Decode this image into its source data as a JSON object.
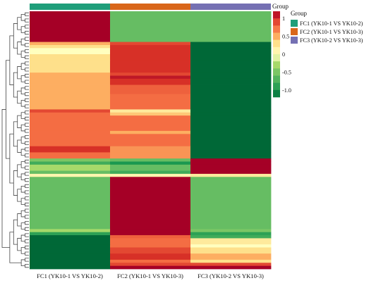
{
  "chart_data": {
    "type": "heatmap",
    "columns": [
      "FC1 (YK10-1 VS YK10-2)",
      "FC2 (YK10-1 VS YK10-3)",
      "FC3 (YK10-2 VS YK10-3)"
    ],
    "column_group_colors": [
      "#1f9e7a",
      "#d9661a",
      "#7570b3"
    ],
    "group_annotation": {
      "label": "Group",
      "legend_title": "Group",
      "entries": [
        {
          "name": "FC1 (YK10-1 VS YK10-2)",
          "color": "#1f9e7a"
        },
        {
          "name": "FC2 (YK10-1 VS YK10-3)",
          "color": "#d9661a"
        },
        {
          "name": "FC3 (YK10-2 VS YK10-3)",
          "color": "#7570b3"
        }
      ]
    },
    "color_scale": {
      "range": [
        -1.2,
        1.2
      ],
      "ticks": [
        1,
        0.5,
        0,
        -0.5,
        -1.0
      ],
      "tick_labels": [
        "1",
        "0.5",
        "0",
        "-0.5",
        "-1.0"
      ],
      "stops": [
        {
          "v": -1.2,
          "c": "#006837"
        },
        {
          "v": -1.0,
          "c": "#1a9850"
        },
        {
          "v": -0.6,
          "c": "#66bd63"
        },
        {
          "v": -0.3,
          "c": "#a6d96a"
        },
        {
          "v": 0.0,
          "c": "#ffffbf"
        },
        {
          "v": 0.3,
          "c": "#fee08b"
        },
        {
          "v": 0.5,
          "c": "#fdae61"
        },
        {
          "v": 0.75,
          "c": "#f46d43"
        },
        {
          "v": 1.0,
          "c": "#d73027"
        },
        {
          "v": 1.2,
          "c": "#a50026"
        }
      ]
    },
    "row_blocks": [
      {
        "rows": 10,
        "values": [
          1.2,
          -0.6,
          -0.6
        ]
      },
      {
        "rows": 1,
        "values": [
          0.5,
          0.9,
          -1.2
        ]
      },
      {
        "rows": 1,
        "values": [
          0.3,
          1.0,
          -1.2
        ]
      },
      {
        "rows": 2,
        "values": [
          0.0,
          1.0,
          -1.2
        ]
      },
      {
        "rows": 2,
        "values": [
          0.3,
          1.0,
          -1.2
        ]
      },
      {
        "rows": 4,
        "values": [
          0.3,
          1.0,
          -1.2
        ]
      },
      {
        "rows": 1,
        "values": [
          0.5,
          0.9,
          -1.2
        ]
      },
      {
        "rows": 1,
        "values": [
          0.5,
          1.1,
          -1.2
        ]
      },
      {
        "rows": 2,
        "values": [
          0.5,
          1.0,
          -1.2
        ]
      },
      {
        "rows": 3,
        "values": [
          0.5,
          0.8,
          -1.2
        ]
      },
      {
        "rows": 5,
        "values": [
          0.5,
          0.75,
          -1.2
        ]
      },
      {
        "rows": 1,
        "values": [
          0.9,
          0.2,
          -1.2
        ]
      },
      {
        "rows": 1,
        "values": [
          0.75,
          0.4,
          -1.2
        ]
      },
      {
        "rows": 5,
        "values": [
          0.75,
          0.75,
          -1.2
        ]
      },
      {
        "rows": 1,
        "values": [
          0.75,
          0.5,
          -1.2
        ]
      },
      {
        "rows": 4,
        "values": [
          0.75,
          0.75,
          -1.2
        ]
      },
      {
        "rows": 2,
        "values": [
          1.0,
          0.6,
          -1.2
        ]
      },
      {
        "rows": 2,
        "values": [
          0.75,
          0.6,
          -1.2
        ]
      },
      {
        "rows": 1,
        "values": [
          -0.5,
          -0.6,
          1.2
        ]
      },
      {
        "rows": 1,
        "values": [
          -0.8,
          -1.0,
          1.2
        ]
      },
      {
        "rows": 2,
        "values": [
          -0.3,
          -0.6,
          1.2
        ]
      },
      {
        "rows": 1,
        "values": [
          -0.6,
          -0.8,
          1.2
        ]
      },
      {
        "rows": 1,
        "values": [
          0.1,
          0.1,
          0.2
        ]
      },
      {
        "rows": 17,
        "values": [
          -0.6,
          1.2,
          -0.6
        ]
      },
      {
        "rows": 1,
        "values": [
          -0.3,
          1.2,
          -0.5
        ]
      },
      {
        "rows": 1,
        "values": [
          -0.9,
          1.2,
          -0.9
        ]
      },
      {
        "rows": 1,
        "values": [
          -1.2,
          0.8,
          -0.8
        ]
      },
      {
        "rows": 2,
        "values": [
          -1.2,
          0.75,
          0.2
        ]
      },
      {
        "rows": 1,
        "values": [
          -1.2,
          0.75,
          0.0
        ]
      },
      {
        "rows": 2,
        "values": [
          -1.2,
          0.9,
          0.3
        ]
      },
      {
        "rows": 2,
        "values": [
          -1.2,
          1.0,
          0.5
        ]
      },
      {
        "rows": 1,
        "values": [
          -1.2,
          0.75,
          0.3
        ]
      },
      {
        "rows": 1,
        "values": [
          -1.2,
          0.9,
          0.9
        ]
      },
      {
        "rows": 1,
        "values": [
          -1.2,
          1.2,
          1.2
        ]
      }
    ]
  }
}
